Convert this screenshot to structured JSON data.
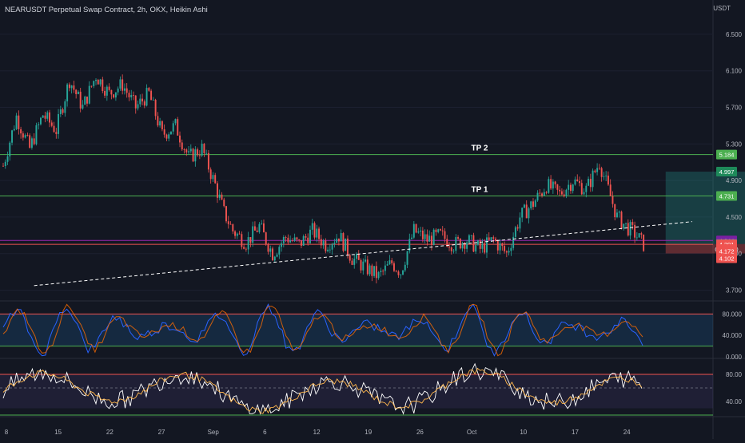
{
  "chart_data": {
    "type": "candlestick",
    "title": "NEARUSDT Perpetual Swap Contract, 2h, OKX, Heikin Ashi",
    "y_unit": "USDT",
    "y_ticks": [
      "6.500",
      "6.100",
      "5.700",
      "5.300",
      "4.900",
      "4.500",
      "4.100",
      "3.700"
    ],
    "ylim": [
      3.6,
      6.7
    ],
    "x_ticks": [
      "8",
      "15",
      "22",
      "27",
      "Sep",
      "6",
      "12",
      "19",
      "26",
      "Oct",
      "10",
      "17",
      "24"
    ],
    "candle_path": [
      [
        0,
        5.06
      ],
      [
        3,
        5.6
      ],
      [
        6,
        5.25
      ],
      [
        9,
        5.62
      ],
      [
        12,
        5.45
      ],
      [
        15,
        6.0
      ],
      [
        18,
        5.7
      ],
      [
        21,
        6.05
      ],
      [
        24,
        5.85
      ],
      [
        27,
        5.95
      ],
      [
        30,
        5.7
      ],
      [
        33,
        5.85
      ],
      [
        36,
        5.4
      ],
      [
        39,
        5.5
      ],
      [
        42,
        5.15
      ],
      [
        45,
        5.25
      ],
      [
        48,
        4.85
      ],
      [
        50,
        4.55
      ],
      [
        52,
        4.35
      ],
      [
        55,
        4.22
      ],
      [
        58,
        4.4
      ],
      [
        61,
        4.1
      ],
      [
        64,
        4.28
      ],
      [
        67,
        4.2
      ],
      [
        70,
        4.35
      ],
      [
        73,
        4.2
      ],
      [
        76,
        4.3
      ],
      [
        79,
        4.05
      ],
      [
        82,
        3.95
      ],
      [
        85,
        3.85
      ],
      [
        88,
        4.0
      ],
      [
        90,
        3.9
      ],
      [
        93,
        4.35
      ],
      [
        96,
        4.25
      ],
      [
        99,
        4.3
      ],
      [
        102,
        4.2
      ],
      [
        105,
        4.25
      ],
      [
        108,
        4.15
      ],
      [
        111,
        4.25
      ],
      [
        114,
        4.1
      ],
      [
        117,
        4.5
      ],
      [
        120,
        4.65
      ],
      [
        123,
        4.85
      ],
      [
        126,
        4.75
      ],
      [
        129,
        4.9
      ],
      [
        132,
        4.8
      ],
      [
        135,
        5.1
      ],
      [
        137,
        4.8
      ],
      [
        139,
        4.5
      ],
      [
        141,
        4.4
      ],
      [
        143,
        4.32
      ],
      [
        145,
        4.2
      ]
    ],
    "trendline": {
      "from": [
        7,
        3.75
      ],
      "to": [
        156,
        4.45
      ],
      "style": "dashed"
    },
    "annotations": [
      {
        "label": "TP 2",
        "price": 5.184,
        "color": "#4caf50"
      },
      {
        "label": "TP 1",
        "price": 4.731,
        "color": "#4caf50"
      }
    ],
    "horizontal_lines": [
      {
        "price": 5.184,
        "color": "#4caf50"
      },
      {
        "price": 4.731,
        "color": "#4caf50"
      },
      {
        "price": 4.244,
        "color": "#9c27b0"
      },
      {
        "price": 4.201,
        "color": "#ef5350"
      }
    ],
    "position": {
      "entry": 4.205,
      "target": 4.997,
      "stop": 4.102,
      "x_start": 150,
      "x_end": 212,
      "profit_color": "rgba(38,166,154,0.28)",
      "loss_color": "rgba(239,83,80,0.35)"
    },
    "price_labels": [
      {
        "text": "4.997",
        "price": 4.997,
        "bg": "#1e8a5a"
      },
      {
        "text": "5.184",
        "price": 5.184,
        "bg": "#4caf50"
      },
      {
        "text": "4.731",
        "price": 4.731,
        "bg": "#4caf50"
      },
      {
        "text": "4.244",
        "price": 4.244,
        "bg": "#7b1fa2"
      },
      {
        "text": "4.205",
        "price": 4.205,
        "bg": "#26a69a"
      },
      {
        "text": "4.201",
        "price": 4.201,
        "bg": "#ef5350"
      },
      {
        "text": "01:33:10",
        "price": 4.15,
        "bg": "#ef5350"
      },
      {
        "text": "4.172",
        "price": 4.13,
        "bg": "#ef5350"
      },
      {
        "text": "4.102",
        "price": 4.05,
        "bg": "#ef5350"
      }
    ],
    "rsi_panel": {
      "y_ticks": [
        "80.000",
        "40.000",
        "0.000"
      ],
      "upper_line": 80,
      "lower_line": 20,
      "ylim": [
        0,
        100
      ]
    },
    "stoch_panel": {
      "y_ticks": [
        "80.00",
        "40.00"
      ],
      "upper_line": 80,
      "lower_line": 20,
      "ylim": [
        20,
        100
      ]
    },
    "colors": {
      "up": "#26a69a",
      "down": "#ef5350",
      "background": "#131722",
      "text": "#d1d4dc"
    }
  }
}
